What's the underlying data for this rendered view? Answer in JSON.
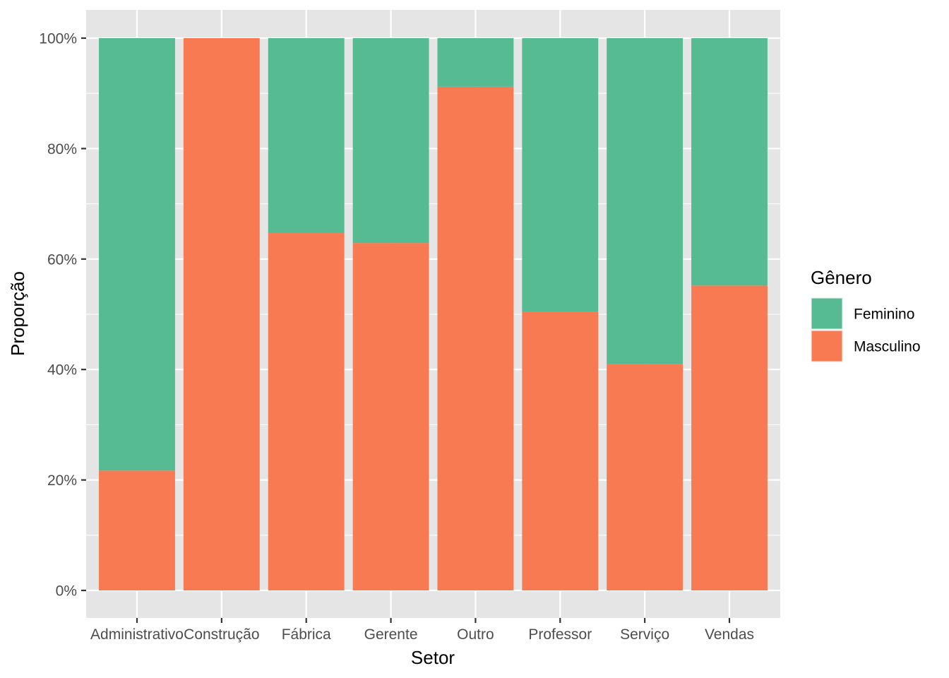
{
  "chart_data": {
    "type": "bar",
    "stacked": true,
    "normalized": true,
    "xlabel": "Setor",
    "ylabel": "Proporção",
    "categories": [
      "Administrativo",
      "Construção",
      "Fábrica",
      "Gerente",
      "Outro",
      "Professor",
      "Serviço",
      "Vendas"
    ],
    "series": [
      {
        "name": "Feminino",
        "color": "#56BA93",
        "values": [
          0.783,
          0.0,
          0.353,
          0.371,
          0.088,
          0.496,
          0.59,
          0.448
        ]
      },
      {
        "name": "Masculino",
        "color": "#F87A53",
        "values": [
          0.217,
          1.0,
          0.647,
          0.629,
          0.912,
          0.504,
          0.41,
          0.552
        ]
      }
    ],
    "ylim": [
      0,
      1
    ],
    "y_ticks": [
      0,
      0.2,
      0.4,
      0.6,
      0.8,
      1.0
    ],
    "y_tick_labels": [
      "0%",
      "20%",
      "40%",
      "60%",
      "80%",
      "100%"
    ],
    "grid": true,
    "legend": {
      "title": "Gênero",
      "position": "right"
    },
    "colors": {
      "panel_background": "#E5E5E5",
      "grid": "#FFFFFF",
      "tick": "#333333"
    }
  }
}
